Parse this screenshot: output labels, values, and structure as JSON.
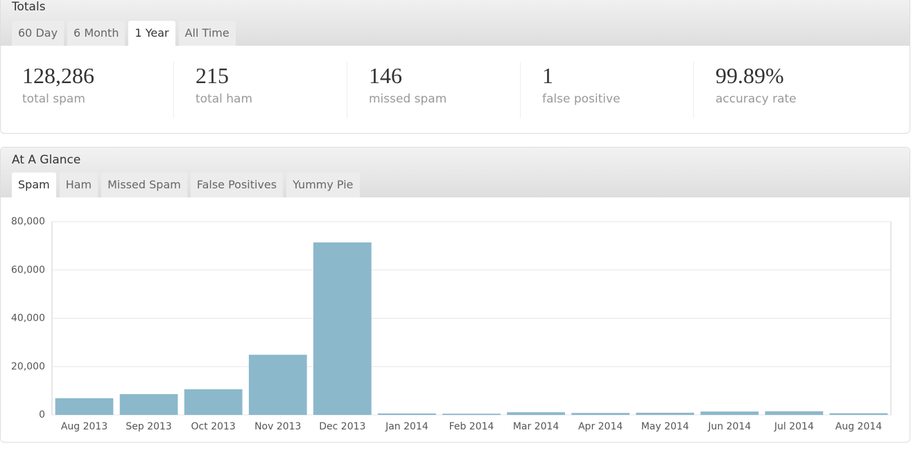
{
  "totals": {
    "title": "Totals",
    "tabs": [
      "60 Day",
      "6 Month",
      "1 Year",
      "All Time"
    ],
    "stats": [
      {
        "value": "128,286",
        "label": "total spam"
      },
      {
        "value": "215",
        "label": "total ham"
      },
      {
        "value": "146",
        "label": "missed spam"
      },
      {
        "value": "1",
        "label": "false positive"
      },
      {
        "value": "99.89%",
        "label": "accuracy rate"
      }
    ]
  },
  "glance": {
    "title": "At A Glance",
    "tabs": [
      "Spam",
      "Ham",
      "Missed Spam",
      "False Positives",
      "Yummy Pie"
    ]
  },
  "chart_data": {
    "type": "bar",
    "categories": [
      "Aug 2013",
      "Sep 2013",
      "Oct 2013",
      "Nov 2013",
      "Dec 2013",
      "Jan 2014",
      "Feb 2014",
      "Mar 2014",
      "Apr 2014",
      "May 2014",
      "Jun 2014",
      "Jul 2014",
      "Aug 2014"
    ],
    "values": [
      6900,
      8600,
      10600,
      24900,
      71400,
      600,
      500,
      1100,
      800,
      900,
      1400,
      1500,
      700
    ],
    "color": "#8cb8cc",
    "ylim": [
      0,
      80000
    ],
    "yticks": [
      0,
      {
        "value": 20000,
        "label": "20,000"
      },
      {
        "value": 40000,
        "label": "40,000"
      },
      {
        "value": 60000,
        "label": "60,000"
      },
      {
        "value": 80000,
        "label": "80,000"
      }
    ],
    "grid": true
  }
}
